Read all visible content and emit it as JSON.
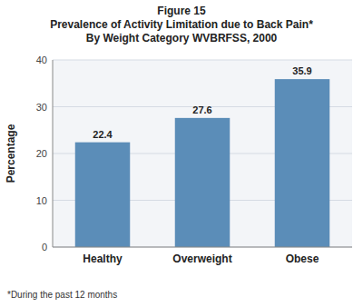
{
  "chart_data": {
    "type": "bar",
    "title": "Figure 15\nPrevalence of Activity Limitation due to Back Pain*\nBy Weight Category WVBRFSS, 2000",
    "categories": [
      "Healthy",
      "Overweight",
      "Obese"
    ],
    "values": [
      22.4,
      27.6,
      35.9
    ],
    "color": "#5b8db8",
    "ylabel": "Percentage",
    "ylim": [
      0,
      40
    ],
    "yticks": [
      0,
      10,
      20,
      30,
      40
    ],
    "grid": true,
    "data_labels": true,
    "footnote": "*During the past 12 months"
  }
}
